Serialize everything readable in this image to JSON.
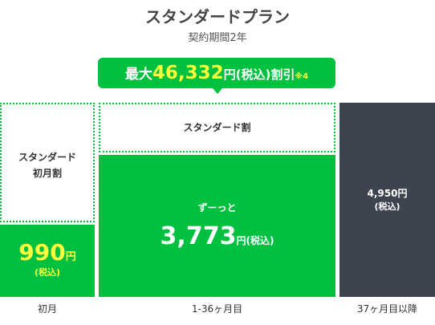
{
  "header": {
    "title": "スタンダードプラン",
    "subtitle": "契約期間2年"
  },
  "badge": {
    "prefix": "最大",
    "amount": "46,332",
    "suffix": "円(税込)割引",
    "note": "※4"
  },
  "columns": [
    {
      "discount_lines": [
        "スタンダード",
        "初月割"
      ],
      "price": "990",
      "unit": "円",
      "tax": "(税込)",
      "period": "初月"
    },
    {
      "discount": "スタンダード割",
      "caption": "ずーっと",
      "price": "3,773",
      "unit": "円(税込)",
      "period": "1-36ヶ月目"
    },
    {
      "price": "4,950円",
      "tax": "(税込)",
      "period": "37ヶ月目以降"
    }
  ]
}
